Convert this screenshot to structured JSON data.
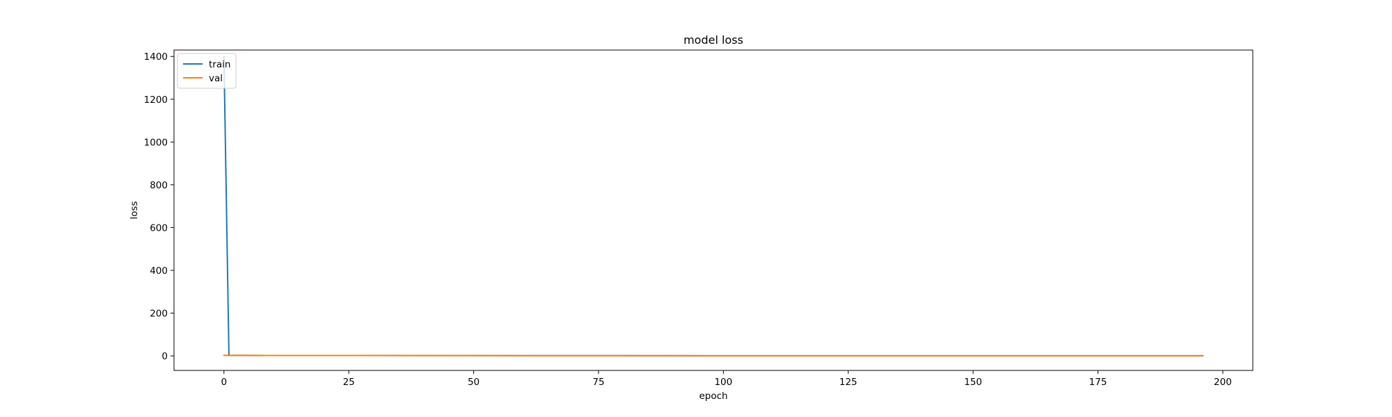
{
  "chart_data": {
    "type": "line",
    "title": "model loss",
    "xlabel": "epoch",
    "ylabel": "loss",
    "xlim": [
      -10,
      206
    ],
    "ylim": [
      -68,
      1430
    ],
    "xticks": [
      0,
      25,
      50,
      75,
      100,
      125,
      150,
      175,
      200
    ],
    "yticks": [
      0,
      200,
      400,
      600,
      800,
      1000,
      1200,
      1400
    ],
    "grid": false,
    "legend": {
      "placement": "upper-left",
      "entries": [
        "train",
        "val"
      ]
    },
    "series": [
      {
        "name": "train",
        "color": "#1f77b4",
        "points": [
          [
            0,
            1400
          ],
          [
            1,
            2.6
          ],
          [
            2,
            2.4
          ],
          [
            5,
            2.2
          ],
          [
            10,
            2.0
          ],
          [
            25,
            1.7
          ],
          [
            50,
            1.3
          ],
          [
            75,
            1.0
          ],
          [
            100,
            0.8
          ],
          [
            125,
            0.7
          ],
          [
            150,
            0.6
          ],
          [
            175,
            0.55
          ],
          [
            196,
            0.5
          ]
        ]
      },
      {
        "name": "val",
        "color": "#ff7f0e",
        "points": [
          [
            0,
            2.5
          ],
          [
            1,
            2.4
          ],
          [
            2,
            2.3
          ],
          [
            5,
            2.2
          ],
          [
            10,
            2.0
          ],
          [
            25,
            1.7
          ],
          [
            50,
            1.3
          ],
          [
            75,
            1.0
          ],
          [
            100,
            0.8
          ],
          [
            125,
            0.7
          ],
          [
            150,
            0.6
          ],
          [
            175,
            0.55
          ],
          [
            196,
            0.5
          ]
        ]
      }
    ]
  }
}
